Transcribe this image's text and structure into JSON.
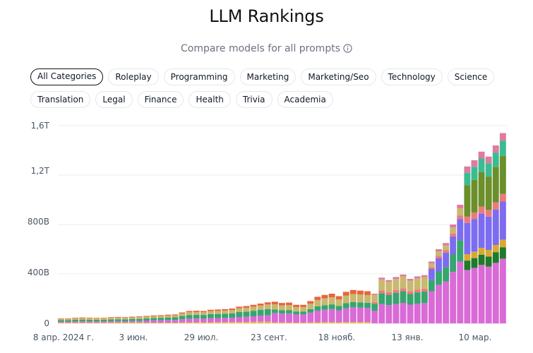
{
  "header": {
    "title": "LLM Rankings",
    "subtitle": "Compare models for all prompts"
  },
  "categories": {
    "row1": [
      "All Categories",
      "Roleplay",
      "Programming",
      "Marketing",
      "Marketing/Seo",
      "Technology",
      "Science"
    ],
    "row2": [
      "Translation",
      "Legal",
      "Finance",
      "Health",
      "Trivia",
      "Academia"
    ],
    "active": "All Categories"
  },
  "colors": {
    "grid": "#e5e7eb",
    "series": [
      "#e9b93a",
      "#d96ad6",
      "#36a56e",
      "#1f7a2c",
      "#d9a930",
      "#7c6cf0",
      "#ec7a7a",
      "#c9b870",
      "#6b8f2a",
      "#3dbb90",
      "#e07aa0",
      "#e8643a"
    ]
  },
  "chart_data": {
    "type": "bar",
    "stacked": true,
    "x_tick_labels": [
      "8 апр. 2024 г.",
      "3 июн.",
      "29 июл.",
      "23 сент.",
      "18 нояб.",
      "13 янв.",
      "10 мар."
    ],
    "y_tick_labels": [
      "0",
      "400B",
      "800B",
      "1,2T",
      "1,6T"
    ],
    "ylim": [
      0,
      1600
    ],
    "y_unit": "B tokens",
    "series_order": [
      "s0",
      "s1",
      "s2",
      "s3",
      "s4",
      "s5",
      "s6",
      "s7",
      "s8",
      "s9",
      "s10",
      "s11"
    ],
    "totals": [
      40,
      40,
      45,
      48,
      46,
      44,
      45,
      50,
      52,
      50,
      54,
      56,
      60,
      64,
      66,
      70,
      72,
      88,
      100,
      102,
      100,
      110,
      112,
      115,
      120,
      135,
      140,
      150,
      160,
      170,
      175,
      165,
      168,
      150,
      150,
      180,
      215,
      230,
      240,
      220,
      255,
      270,
      265,
      260,
      240,
      370,
      350,
      375,
      395,
      360,
      380,
      390,
      500,
      600,
      650,
      800,
      960,
      1270,
      1320,
      1390,
      1350,
      1440,
      1540
    ],
    "mix": [
      {
        "upto": 12,
        "parts": {
          "s0": 0.12,
          "s1": 0.22,
          "s2": 0.3,
          "s7": 0.26,
          "s11": 0.1
        }
      },
      {
        "upto": 30,
        "parts": {
          "s0": 0.08,
          "s1": 0.3,
          "s2": 0.3,
          "s7": 0.22,
          "s11": 0.1
        }
      },
      {
        "upto": 44,
        "parts": {
          "s0": 0.04,
          "s1": 0.44,
          "s2": 0.16,
          "s7": 0.24,
          "s11": 0.12
        }
      },
      {
        "upto": 52,
        "parts": {
          "s1": 0.42,
          "s2": 0.24,
          "s7": 0.24,
          "s6": 0.06,
          "s10": 0.04
        }
      },
      {
        "upto": 57,
        "parts": {
          "s1": 0.52,
          "s2": 0.18,
          "s5": 0.18,
          "s7": 0.06,
          "s6": 0.03,
          "s10": 0.03
        }
      },
      {
        "upto": 63,
        "parts": {
          "s1": 0.34,
          "s3": 0.06,
          "s4": 0.04,
          "s5": 0.2,
          "s6": 0.04,
          "s8": 0.2,
          "s9": 0.08,
          "s10": 0.04
        }
      }
    ]
  }
}
